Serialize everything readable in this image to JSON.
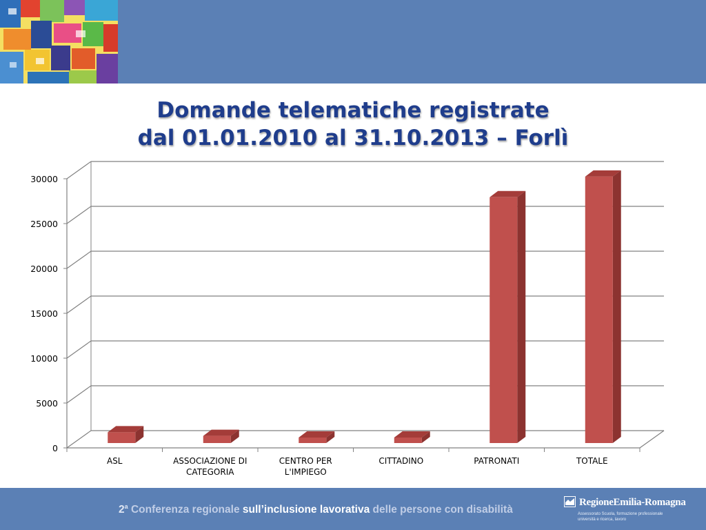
{
  "slide": {
    "title_line1": "Domande telematiche registrate",
    "title_line2": "dal 01.01.2010 al 31.10.2013 – Forlì"
  },
  "footer": {
    "ordinal": "2",
    "ordinal_sup": "a",
    "part1": "Conferenza regionale",
    "part2": "sull’inclusione lavorativa",
    "part3": "delle persone con disabilità",
    "logo_name": "RegioneEmilia-Romagna",
    "logo_sub1": "Assessorato Scuola, formazione professionale",
    "logo_sub2": "università e ricerca, lavoro"
  },
  "colors": {
    "band": "#5b80b5",
    "title": "#1f3d8c",
    "bar_front": "#c0504d",
    "bar_side": "#8c3330",
    "bar_top": "#a43c39",
    "grid": "#808080"
  },
  "chart_data": {
    "type": "bar",
    "title": "Domande telematiche registrate dal 01.01.2010 al 31.10.2013 – Forlì",
    "categories": [
      "ASL",
      "ASSOCIAZIONE DI CATEGORIA",
      "CENTRO PER L'IMPIEGO",
      "CITTADINO",
      "PATRONATI",
      "TOTALE"
    ],
    "category_lines": [
      [
        "ASL"
      ],
      [
        "ASSOCIAZIONE DI",
        "CATEGORIA"
      ],
      [
        "CENTRO PER",
        "L'IMPIEGO"
      ],
      [
        "CITTADINO"
      ],
      [
        "PATRONATI"
      ],
      [
        "TOTALE"
      ]
    ],
    "values": [
      1200,
      800,
      20,
      300,
      27400,
      29700
    ],
    "ylim": [
      0,
      30000
    ],
    "yticks": [
      "0",
      "5000",
      "10000",
      "15000",
      "20000",
      "25000",
      "30000"
    ],
    "xlabel": "",
    "ylabel": "",
    "grid": true,
    "legend": "none",
    "style": "3d-column"
  }
}
